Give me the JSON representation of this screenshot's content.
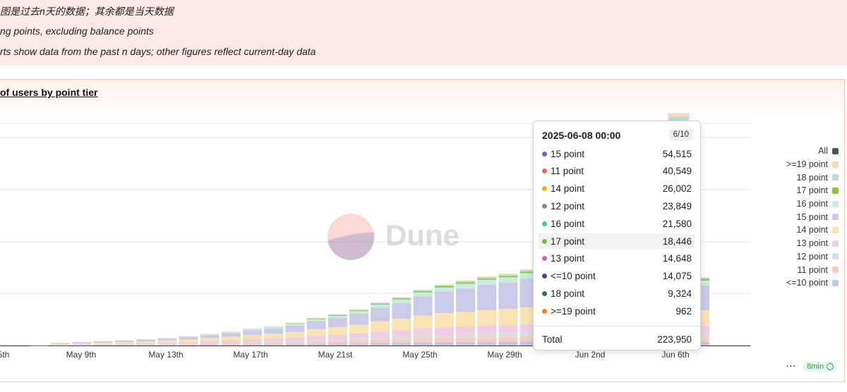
{
  "notes": {
    "line1": "图是过去n天的数据；其余都是当天数据",
    "line2": "ng points, excluding balance points",
    "line3": "rts show data from the past n days; other figures reflect current-day data"
  },
  "chart_title": "of users by point tier",
  "chart_data": {
    "type": "bar",
    "stacked": true,
    "title": "of users by point tier",
    "x_tick_labels": [
      "5th",
      "May 9th",
      "May 13th",
      "May 17th",
      "May 21st",
      "May 25th",
      "May 29th",
      "Jun 2nd",
      "Jun 6th"
    ],
    "series_order": [
      "<=10 point",
      "11 point",
      "12 point",
      "13 point",
      "14 point",
      "15 point",
      "16 point",
      "17 point",
      "18 point",
      ">=19 point"
    ],
    "colors": {
      "<=10 point": "#c3c6e8",
      "11 point": "#f8cdc0",
      "12 point": "#dcdcdc",
      "13 point": "#efcde6",
      "14 point": "#f9e2b3",
      "15 point": "#c9cbe9",
      "16 point": "#cdeadf",
      "17 point": "#8cc63f",
      "18 point": "#bcdccf",
      ">=19 point": "#f8d7b5"
    },
    "totals": [
      600,
      2500,
      3500,
      4200,
      5000,
      6200,
      7200,
      9000,
      11200,
      13400,
      16500,
      18500,
      22000,
      26800,
      30200,
      35000,
      41600,
      46800,
      54000,
      59000,
      62800,
      66800,
      69300,
      73500,
      78000,
      81900,
      87000,
      92000,
      96000,
      216000,
      223950,
      66000
    ],
    "highlight_index": 30,
    "tooltip": {
      "title": "2025-06-08 00:00",
      "page": "6/10",
      "rows": [
        {
          "name": "15 point",
          "value": "54,515",
          "color": "#5b6bbf"
        },
        {
          "name": "11 point",
          "value": "40,549",
          "color": "#f06a4b"
        },
        {
          "name": "14 point",
          "value": "26,002",
          "color": "#f0b400"
        },
        {
          "name": "12 point",
          "value": "23,849",
          "color": "#8a8a8a"
        },
        {
          "name": "16 point",
          "value": "21,580",
          "color": "#4cc0a0"
        },
        {
          "name": "17 point",
          "value": "18,446",
          "color": "#7dbb3f"
        },
        {
          "name": "13 point",
          "value": "14,648",
          "color": "#d55ebd"
        },
        {
          "name": "<=10 point",
          "value": "14,075",
          "color": "#3c4a9b"
        },
        {
          "name": "18 point",
          "value": "9,324",
          "color": "#2f6f5f"
        },
        {
          "name": ">=19 point",
          "value": "962",
          "color": "#f5821f"
        }
      ],
      "total_label": "Total",
      "total_value": "223,950"
    }
  },
  "legend": [
    {
      "label": "All",
      "color": "#555555"
    },
    {
      "label": ">=19 point",
      "color": "#f8d7b5"
    },
    {
      "label": "18 point",
      "color": "#bcdccf"
    },
    {
      "label": "17 point",
      "color": "#8cc63f"
    },
    {
      "label": "16 point",
      "color": "#cdeadf"
    },
    {
      "label": "15 point",
      "color": "#c9cbe9"
    },
    {
      "label": "14 point",
      "color": "#f9e2b3"
    },
    {
      "label": "13 point",
      "color": "#efcde6"
    },
    {
      "label": "12 point",
      "color": "#dcdcdc"
    },
    {
      "label": "11 point",
      "color": "#f8cdc0"
    },
    {
      "label": "<=10 point",
      "color": "#c3c6e8"
    }
  ],
  "watermark": "Dune",
  "footer": {
    "more": "···",
    "age": "8min"
  }
}
